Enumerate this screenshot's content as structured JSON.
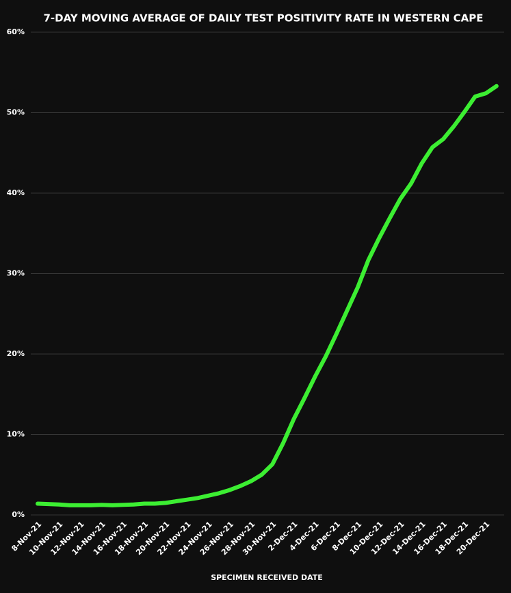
{
  "chart_data": {
    "type": "line",
    "title": "7-DAY MOVING AVERAGE OF DAILY TEST POSITIVITY RATE IN WESTERN CAPE",
    "x_label": "SPECIMEN RECEIVED DATE",
    "categories": [
      "8-Nov-21",
      null,
      "10-Nov-21",
      null,
      "12-Nov-21",
      null,
      "14-Nov-21",
      null,
      "16-Nov-21",
      null,
      "18-Nov-21",
      null,
      "20-Nov-21",
      null,
      "22-Nov-21",
      null,
      "24-Nov-21",
      null,
      "26-Nov-21",
      null,
      "28-Nov-21",
      null,
      "30-Nov-21",
      null,
      "2-Dec-21",
      null,
      "4-Dec-21",
      null,
      "6-Dec-21",
      null,
      "8-Dec-21",
      null,
      "10-Dec-21",
      null,
      "12-Dec-21",
      null,
      "14-Dec-21",
      null,
      "16-Dec-21",
      null,
      "18-Dec-21",
      null,
      "20-Dec-21",
      null
    ],
    "series": [
      {
        "name": "7-day moving average",
        "color": "#3cee32",
        "values": [
          1.4,
          1.35,
          1.3,
          1.2,
          1.2,
          1.2,
          1.25,
          1.2,
          1.25,
          1.3,
          1.4,
          1.4,
          1.5,
          1.7,
          1.9,
          2.1,
          2.4,
          2.7,
          3.1,
          3.6,
          4.2,
          5.0,
          6.3,
          8.9,
          11.9,
          14.5,
          17.2,
          19.7,
          22.5,
          25.4,
          28.3,
          31.7,
          34.4,
          36.9,
          39.3,
          41.2,
          43.7,
          45.7,
          46.7,
          48.3,
          50.1,
          52.0,
          52.4,
          53.3
        ]
      }
    ],
    "ylim": [
      0,
      60
    ],
    "yticks": [
      {
        "value": 0,
        "label": "0%"
      },
      {
        "value": 10,
        "label": "10%"
      },
      {
        "value": 20,
        "label": "20%"
      },
      {
        "value": 30,
        "label": "30%"
      },
      {
        "value": 40,
        "label": "40%"
      },
      {
        "value": 50,
        "label": "50%"
      },
      {
        "value": 60,
        "label": "60%"
      }
    ],
    "grid": true
  }
}
